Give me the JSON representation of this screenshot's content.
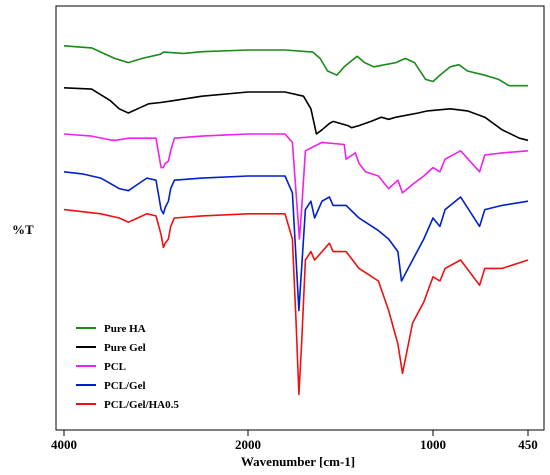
{
  "chart_data": {
    "type": "line",
    "title": "",
    "xlabel": "Wavenumber [cm-1]",
    "ylabel": "%T",
    "x_reversed": true,
    "xlim": [
      4000,
      450
    ],
    "x_ticks": [
      {
        "value": 4000,
        "label": "4000"
      },
      {
        "value": 2000,
        "label": "2000"
      },
      {
        "value": 1000,
        "label": "1000"
      },
      {
        "value": 450,
        "label": "450"
      }
    ],
    "ylim": [
      0,
      100
    ],
    "y_ticks": false,
    "grid": false,
    "legend_position": "bottom-left",
    "series": [
      {
        "name": "Pure HA",
        "color": "#1a8a1a",
        "points": [
          [
            4000,
            91
          ],
          [
            3700,
            90.5
          ],
          [
            3450,
            88
          ],
          [
            3300,
            87
          ],
          [
            3150,
            88
          ],
          [
            2950,
            89
          ],
          [
            2920,
            89.5
          ],
          [
            2700,
            89.2
          ],
          [
            2500,
            89.6
          ],
          [
            2000,
            90
          ],
          [
            1800,
            90
          ],
          [
            1650,
            89.5
          ],
          [
            1610,
            88
          ],
          [
            1570,
            85
          ],
          [
            1520,
            84
          ],
          [
            1480,
            86
          ],
          [
            1410,
            88.5
          ],
          [
            1370,
            87
          ],
          [
            1320,
            86
          ],
          [
            1260,
            86.5
          ],
          [
            1200,
            87
          ],
          [
            1150,
            88
          ],
          [
            1100,
            87
          ],
          [
            1040,
            83
          ],
          [
            1000,
            82.5
          ],
          [
            960,
            84
          ],
          [
            900,
            86
          ],
          [
            850,
            86.5
          ],
          [
            800,
            85
          ],
          [
            700,
            84
          ],
          [
            620,
            83
          ],
          [
            560,
            81.5
          ],
          [
            450,
            81.5
          ]
        ]
      },
      {
        "name": "Pure Gel",
        "color": "#000000",
        "points": [
          [
            4000,
            81
          ],
          [
            3700,
            80.7
          ],
          [
            3500,
            78
          ],
          [
            3400,
            76
          ],
          [
            3300,
            75
          ],
          [
            3200,
            76
          ],
          [
            3080,
            77.2
          ],
          [
            2950,
            77.5
          ],
          [
            2850,
            77.8
          ],
          [
            2500,
            79
          ],
          [
            2000,
            80
          ],
          [
            1800,
            80
          ],
          [
            1700,
            79
          ],
          [
            1660,
            76
          ],
          [
            1640,
            72
          ],
          [
            1630,
            70
          ],
          [
            1600,
            71
          ],
          [
            1560,
            72.5
          ],
          [
            1540,
            73
          ],
          [
            1500,
            72.5
          ],
          [
            1460,
            72
          ],
          [
            1440,
            71.5
          ],
          [
            1400,
            72
          ],
          [
            1335,
            73
          ],
          [
            1280,
            74
          ],
          [
            1240,
            73.5
          ],
          [
            1200,
            74
          ],
          [
            1080,
            75
          ],
          [
            1030,
            75.5
          ],
          [
            900,
            76
          ],
          [
            800,
            75.5
          ],
          [
            700,
            74
          ],
          [
            600,
            71
          ],
          [
            500,
            69
          ],
          [
            450,
            68.5
          ]
        ]
      },
      {
        "name": "PCL",
        "color": "#ee22ee",
        "points": [
          [
            4000,
            70
          ],
          [
            3700,
            69.5
          ],
          [
            3500,
            68.6
          ],
          [
            3440,
            68.5
          ],
          [
            3300,
            69
          ],
          [
            3100,
            69
          ],
          [
            3000,
            69
          ],
          [
            2945,
            62
          ],
          [
            2920,
            62
          ],
          [
            2900,
            63
          ],
          [
            2865,
            63.5
          ],
          [
            2840,
            66
          ],
          [
            2800,
            69
          ],
          [
            2500,
            69.5
          ],
          [
            2200,
            69.8
          ],
          [
            2000,
            70
          ],
          [
            1800,
            70
          ],
          [
            1760,
            68
          ],
          [
            1730,
            50
          ],
          [
            1722,
            45
          ],
          [
            1710,
            52
          ],
          [
            1690,
            66
          ],
          [
            1600,
            68
          ],
          [
            1480,
            67.5
          ],
          [
            1470,
            64
          ],
          [
            1420,
            65.5
          ],
          [
            1400,
            63
          ],
          [
            1365,
            61
          ],
          [
            1295,
            60
          ],
          [
            1240,
            57
          ],
          [
            1190,
            59
          ],
          [
            1165,
            56
          ],
          [
            1110,
            58
          ],
          [
            1050,
            60
          ],
          [
            1000,
            62
          ],
          [
            960,
            61
          ],
          [
            930,
            64
          ],
          [
            840,
            66
          ],
          [
            730,
            61
          ],
          [
            700,
            65
          ],
          [
            600,
            65.5
          ],
          [
            450,
            66
          ]
        ]
      },
      {
        "name": "PCL/Gel",
        "color": "#0020cc",
        "points": [
          [
            4000,
            61
          ],
          [
            3800,
            60.5
          ],
          [
            3600,
            59.5
          ],
          [
            3400,
            57
          ],
          [
            3300,
            56.5
          ],
          [
            3200,
            58
          ],
          [
            3100,
            59.5
          ],
          [
            3000,
            59
          ],
          [
            2945,
            52
          ],
          [
            2920,
            51
          ],
          [
            2900,
            52.5
          ],
          [
            2865,
            54
          ],
          [
            2840,
            57
          ],
          [
            2800,
            59
          ],
          [
            2500,
            59.5
          ],
          [
            2000,
            60
          ],
          [
            1800,
            60
          ],
          [
            1760,
            56
          ],
          [
            1740,
            40
          ],
          [
            1725,
            28
          ],
          [
            1710,
            38
          ],
          [
            1690,
            52
          ],
          [
            1660,
            54
          ],
          [
            1640,
            50
          ],
          [
            1600,
            54
          ],
          [
            1560,
            55
          ],
          [
            1540,
            53
          ],
          [
            1470,
            53
          ],
          [
            1400,
            50
          ],
          [
            1365,
            49
          ],
          [
            1295,
            47
          ],
          [
            1240,
            45
          ],
          [
            1190,
            42
          ],
          [
            1170,
            35
          ],
          [
            1110,
            40
          ],
          [
            1050,
            45
          ],
          [
            1000,
            50
          ],
          [
            960,
            48
          ],
          [
            930,
            52
          ],
          [
            840,
            55
          ],
          [
            730,
            48
          ],
          [
            700,
            52
          ],
          [
            600,
            53
          ],
          [
            450,
            54
          ]
        ]
      },
      {
        "name": "PCL/Gel/HA0.5",
        "color": "#ee1111",
        "points": [
          [
            4000,
            52
          ],
          [
            3800,
            51.5
          ],
          [
            3600,
            51
          ],
          [
            3400,
            50
          ],
          [
            3300,
            49
          ],
          [
            3200,
            50
          ],
          [
            3100,
            51
          ],
          [
            3000,
            50.5
          ],
          [
            2945,
            46
          ],
          [
            2920,
            43
          ],
          [
            2900,
            44
          ],
          [
            2865,
            45
          ],
          [
            2840,
            48
          ],
          [
            2800,
            50
          ],
          [
            2500,
            50.5
          ],
          [
            2000,
            51
          ],
          [
            1800,
            51
          ],
          [
            1760,
            45
          ],
          [
            1740,
            25
          ],
          [
            1725,
            8
          ],
          [
            1710,
            20
          ],
          [
            1690,
            40
          ],
          [
            1660,
            42
          ],
          [
            1640,
            40
          ],
          [
            1600,
            42
          ],
          [
            1560,
            44
          ],
          [
            1540,
            42
          ],
          [
            1470,
            42
          ],
          [
            1400,
            38
          ],
          [
            1365,
            37
          ],
          [
            1295,
            35
          ],
          [
            1240,
            28
          ],
          [
            1190,
            20
          ],
          [
            1165,
            13
          ],
          [
            1110,
            25
          ],
          [
            1050,
            30
          ],
          [
            1000,
            36
          ],
          [
            960,
            35
          ],
          [
            930,
            38
          ],
          [
            840,
            40
          ],
          [
            730,
            34
          ],
          [
            700,
            38
          ],
          [
            600,
            38
          ],
          [
            450,
            40
          ]
        ]
      }
    ]
  }
}
